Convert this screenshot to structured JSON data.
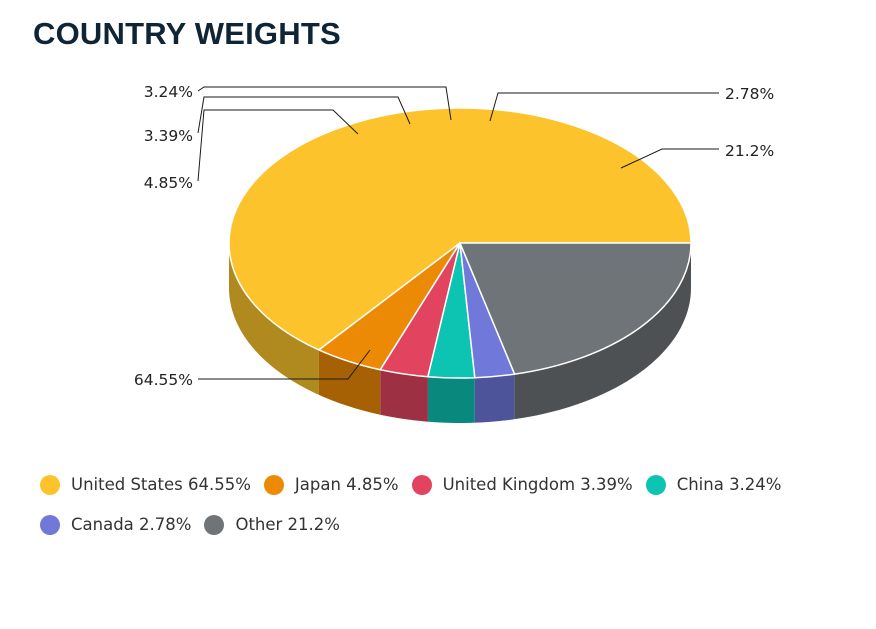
{
  "title": "COUNTRY WEIGHTS",
  "chart_data": {
    "type": "pie",
    "title": "COUNTRY WEIGHTS",
    "slices": [
      {
        "name": "United States",
        "value": 64.55,
        "label": "64.55%",
        "legend": "United States 64.55%",
        "color": "#fcc32c"
      },
      {
        "name": "Japan",
        "value": 4.85,
        "label": "4.85%",
        "legend": "Japan 4.85%",
        "color": "#ed8a05"
      },
      {
        "name": "United Kingdom",
        "value": 3.39,
        "label": "3.39%",
        "legend": "United Kingdom 3.39%",
        "color": "#e2445f"
      },
      {
        "name": "China",
        "value": 3.24,
        "label": "3.24%",
        "legend": "China 3.24%",
        "color": "#0dc3b2"
      },
      {
        "name": "Canada",
        "value": 2.78,
        "label": "2.78%",
        "legend": "Canada 2.78%",
        "color": "#7078da"
      },
      {
        "name": "Other",
        "value": 21.2,
        "label": "21.2%",
        "legend": "Other 21.2%",
        "color": "#6f7478"
      }
    ],
    "start_angle_deg": 0,
    "direction": "counterclockwise",
    "style": "3d",
    "legend_position": "bottom"
  }
}
